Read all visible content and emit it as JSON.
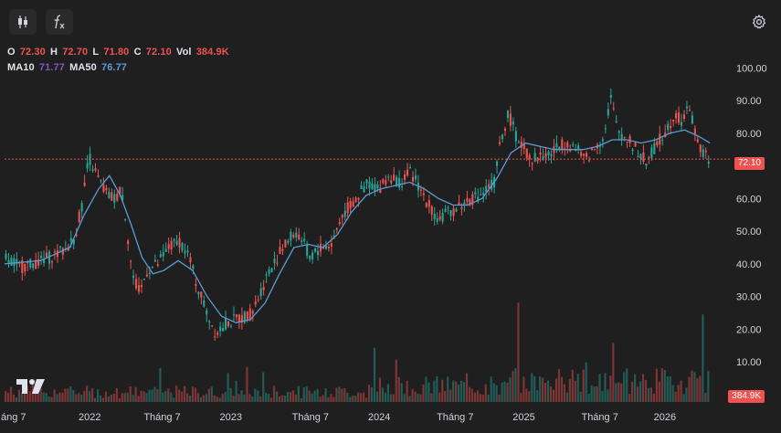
{
  "toolbar": {
    "candles_icon": "candlestick-icon",
    "indicators_icon": "fx-icon",
    "settings_icon": "gear-icon"
  },
  "legend": {
    "o_label": "O",
    "o_value": "72.30",
    "h_label": "H",
    "h_value": "72.70",
    "l_label": "L",
    "l_value": "71.80",
    "c_label": "C",
    "c_value": "72.10",
    "vol_label": "Vol",
    "vol_value": "384.9K",
    "ma10_label": "MA10",
    "ma10_value": "71.77",
    "ma50_label": "MA50",
    "ma50_value": "76.77"
  },
  "colors": {
    "up": "#26a69a",
    "down": "#ef5350",
    "ma10": "#7e57c2",
    "ma50": "#5b9bd5",
    "background": "#1f1f1f",
    "axis_text": "#d1d4dc"
  },
  "chart_data": {
    "type": "line",
    "y_axis": {
      "ticks": [
        "100.00",
        "90.00",
        "80.00",
        "70.00",
        "60.00",
        "50.00",
        "40.00",
        "30.00",
        "20.00",
        "10.00"
      ],
      "ylim": [
        0,
        104
      ]
    },
    "x_axis": {
      "ticks": [
        "áng 7",
        "2022",
        "Tháng 7",
        "2023",
        "Tháng 7",
        "2024",
        "Tháng 7",
        "2025",
        "Tháng 7",
        "2026"
      ]
    },
    "last_price": "72.10",
    "last_volume": "384.9K",
    "price_path": [
      [
        0,
        42
      ],
      [
        0.02,
        39
      ],
      [
        0.05,
        41
      ],
      [
        0.08,
        44
      ],
      [
        0.095,
        48
      ],
      [
        0.105,
        58
      ],
      [
        0.115,
        73
      ],
      [
        0.125,
        67
      ],
      [
        0.14,
        61
      ],
      [
        0.15,
        60
      ],
      [
        0.16,
        63
      ],
      [
        0.165,
        55
      ],
      [
        0.175,
        36
      ],
      [
        0.185,
        31
      ],
      [
        0.195,
        38
      ],
      [
        0.21,
        40
      ],
      [
        0.225,
        45
      ],
      [
        0.24,
        47
      ],
      [
        0.25,
        44
      ],
      [
        0.265,
        33
      ],
      [
        0.28,
        24
      ],
      [
        0.29,
        19
      ],
      [
        0.305,
        22
      ],
      [
        0.32,
        23
      ],
      [
        0.34,
        25
      ],
      [
        0.36,
        36
      ],
      [
        0.38,
        44
      ],
      [
        0.4,
        50
      ],
      [
        0.41,
        47
      ],
      [
        0.42,
        42
      ],
      [
        0.435,
        45
      ],
      [
        0.45,
        46
      ],
      [
        0.465,
        55
      ],
      [
        0.485,
        60
      ],
      [
        0.5,
        65
      ],
      [
        0.515,
        63
      ],
      [
        0.53,
        67
      ],
      [
        0.545,
        65
      ],
      [
        0.56,
        68
      ],
      [
        0.575,
        62
      ],
      [
        0.59,
        56
      ],
      [
        0.6,
        54
      ],
      [
        0.615,
        56
      ],
      [
        0.63,
        58
      ],
      [
        0.645,
        60
      ],
      [
        0.66,
        62
      ],
      [
        0.675,
        65
      ],
      [
        0.685,
        79
      ],
      [
        0.695,
        86
      ],
      [
        0.705,
        79
      ],
      [
        0.715,
        76
      ],
      [
        0.725,
        72
      ],
      [
        0.74,
        73
      ],
      [
        0.755,
        74
      ],
      [
        0.77,
        77
      ],
      [
        0.785,
        76
      ],
      [
        0.8,
        72
      ],
      [
        0.81,
        74
      ],
      [
        0.825,
        79
      ],
      [
        0.83,
        82
      ],
      [
        0.835,
        92
      ],
      [
        0.845,
        81
      ],
      [
        0.86,
        78
      ],
      [
        0.875,
        74
      ],
      [
        0.885,
        71
      ],
      [
        0.895,
        75
      ],
      [
        0.91,
        80
      ],
      [
        0.925,
        86
      ],
      [
        0.935,
        84
      ],
      [
        0.945,
        88
      ],
      [
        0.955,
        78
      ],
      [
        0.965,
        73
      ],
      [
        0.975,
        72.1
      ]
    ],
    "ma50_path": [
      [
        0,
        40
      ],
      [
        0.05,
        41
      ],
      [
        0.09,
        45
      ],
      [
        0.11,
        55
      ],
      [
        0.13,
        63
      ],
      [
        0.145,
        67
      ],
      [
        0.16,
        61
      ],
      [
        0.175,
        52
      ],
      [
        0.19,
        42
      ],
      [
        0.205,
        37
      ],
      [
        0.22,
        38
      ],
      [
        0.24,
        41
      ],
      [
        0.26,
        38
      ],
      [
        0.28,
        30
      ],
      [
        0.3,
        24
      ],
      [
        0.32,
        22
      ],
      [
        0.34,
        23
      ],
      [
        0.36,
        28
      ],
      [
        0.38,
        37
      ],
      [
        0.4,
        45
      ],
      [
        0.42,
        46
      ],
      [
        0.44,
        45
      ],
      [
        0.46,
        49
      ],
      [
        0.48,
        56
      ],
      [
        0.5,
        61
      ],
      [
        0.52,
        63
      ],
      [
        0.54,
        64
      ],
      [
        0.56,
        65
      ],
      [
        0.58,
        63
      ],
      [
        0.6,
        60
      ],
      [
        0.62,
        58
      ],
      [
        0.64,
        58
      ],
      [
        0.66,
        60
      ],
      [
        0.68,
        66
      ],
      [
        0.7,
        74
      ],
      [
        0.72,
        77
      ],
      [
        0.74,
        76
      ],
      [
        0.76,
        75
      ],
      [
        0.78,
        75
      ],
      [
        0.8,
        75
      ],
      [
        0.82,
        76
      ],
      [
        0.84,
        78
      ],
      [
        0.86,
        78
      ],
      [
        0.88,
        77
      ],
      [
        0.9,
        78
      ],
      [
        0.92,
        80
      ],
      [
        0.94,
        81
      ],
      [
        0.96,
        79
      ],
      [
        0.975,
        77
      ]
    ]
  }
}
